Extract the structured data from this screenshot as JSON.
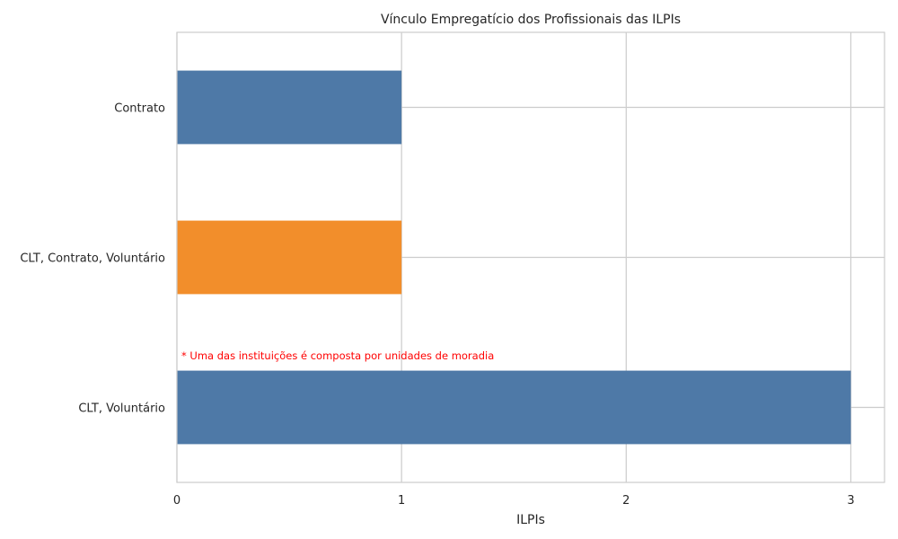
{
  "chart_data": {
    "type": "bar",
    "orientation": "horizontal",
    "title": "Vínculo Empregatício dos Profissionais das ILPIs",
    "xlabel": "ILPIs",
    "ylabel": "",
    "categories": [
      "Contrato",
      "CLT, Contrato, Voluntário",
      "CLT, Voluntário"
    ],
    "values": [
      1,
      1,
      3
    ],
    "bar_colors": [
      "#4e79a7",
      "#f28e2b",
      "#4e79a7"
    ],
    "xlim": [
      0,
      3.15
    ],
    "xticks": [
      0,
      1,
      2,
      3
    ],
    "grid": true,
    "annotation": {
      "text": "* Uma das instituições é composta por unidades de moradia",
      "color": "#ff0000"
    }
  }
}
